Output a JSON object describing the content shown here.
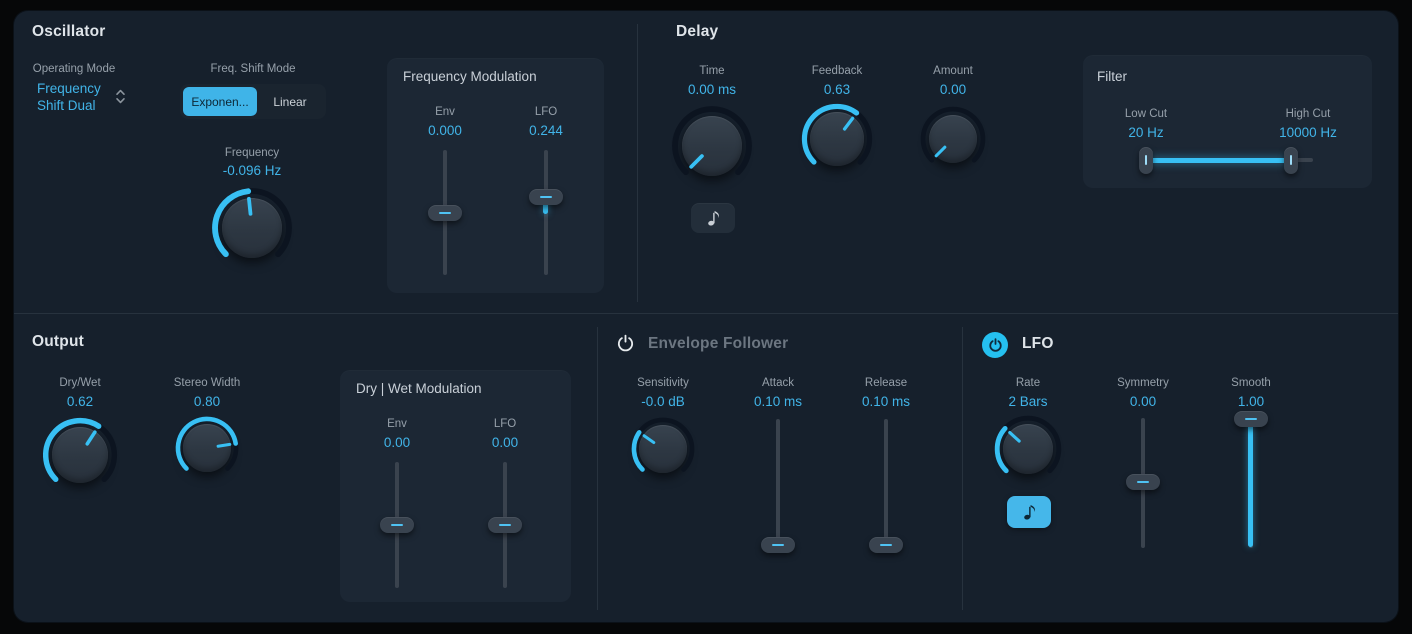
{
  "colors": {
    "accent": "#41b4e8",
    "arc_blue": "#38c0f4",
    "panel_bg": "#16202c",
    "subpanel_bg": "#1c2734",
    "label_gray": "#96a0aa",
    "title_light": "#dfe4e9",
    "dimmed_title": "#6c7681",
    "selected_segment_text": "#0d2736"
  },
  "icons": {
    "power-icon": "⏻",
    "eighth-note-icon": "♪",
    "updown-chevron-icon": "⌃⌄"
  },
  "oscillator": {
    "title": "Oscillator",
    "operating_mode": {
      "label": "Operating Mode",
      "value": [
        "Frequency",
        "Shift Dual"
      ]
    },
    "freq_shift_mode": {
      "label": "Freq. Shift Mode",
      "options": [
        {
          "label": "Exponen...",
          "selected": true
        },
        {
          "label": "Linear",
          "selected": false
        }
      ]
    },
    "frequency": {
      "label": "Frequency",
      "value": "-0.096 Hz"
    },
    "frequency_modulation": {
      "title": "Frequency Modulation",
      "env": {
        "label": "Env",
        "value": "0.000"
      },
      "lfo": {
        "label": "LFO",
        "value": "0.244"
      }
    }
  },
  "delay": {
    "title": "Delay",
    "time": {
      "label": "Time",
      "value": "0.00 ms"
    },
    "feedback": {
      "label": "Feedback",
      "value": "0.63"
    },
    "amount": {
      "label": "Amount",
      "value": "0.00"
    },
    "sync_button": {
      "icon": "eighth-note-icon",
      "active": false
    },
    "filter": {
      "title": "Filter",
      "low_cut": {
        "label": "Low Cut",
        "value": "20 Hz"
      },
      "high_cut": {
        "label": "High Cut",
        "value": "10000 Hz"
      }
    }
  },
  "output": {
    "title": "Output",
    "dry_wet": {
      "label": "Dry/Wet",
      "value": "0.62"
    },
    "stereo_width": {
      "label": "Stereo Width",
      "value": "0.80"
    },
    "dry_wet_modulation": {
      "title": "Dry | Wet Modulation",
      "env": {
        "label": "Env",
        "value": "0.00"
      },
      "lfo": {
        "label": "LFO",
        "value": "0.00"
      }
    }
  },
  "envelope_follower": {
    "title": "Envelope Follower",
    "enabled": false,
    "sensitivity": {
      "label": "Sensitivity",
      "value": "-0.0 dB"
    },
    "attack": {
      "label": "Attack",
      "value": "0.10 ms"
    },
    "release": {
      "label": "Release",
      "value": "0.10 ms"
    }
  },
  "lfo": {
    "title": "LFO",
    "enabled": true,
    "rate": {
      "label": "Rate",
      "value": "2 Bars"
    },
    "sync_button": {
      "icon": "eighth-note-icon",
      "active": true
    },
    "symmetry": {
      "label": "Symmetry",
      "value": "0.00"
    },
    "smooth": {
      "label": "Smooth",
      "value": "1.00"
    }
  }
}
